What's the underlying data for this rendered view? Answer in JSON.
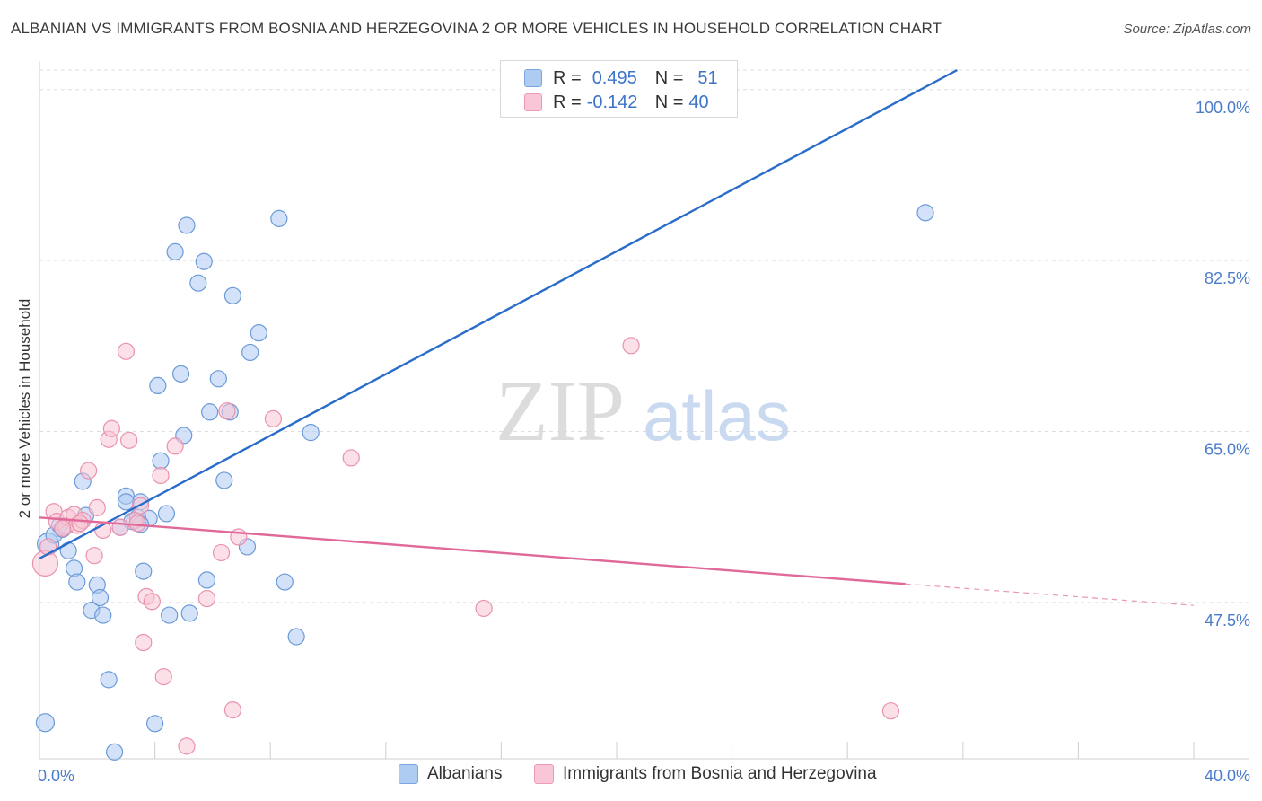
{
  "title": "ALBANIAN VS IMMIGRANTS FROM BOSNIA AND HERZEGOVINA 2 OR MORE VEHICLES IN HOUSEHOLD CORRELATION CHART",
  "source": "Source: ZipAtlas.com",
  "watermark": {
    "zip": "ZIP",
    "atlas": "atlas"
  },
  "legend": {
    "r_label": "R =",
    "n_label": "N =",
    "series": [
      {
        "r": "0.495",
        "n": "51",
        "color": "#aecbf2",
        "border": "#7aa6e0"
      },
      {
        "r": "-0.142",
        "n": "40",
        "color": "#f8c6d6",
        "border": "#ee9ab6"
      }
    ]
  },
  "bottom_legend": [
    "Albanians",
    "Immigrants from Bosnia and Herzegovina"
  ],
  "chart_data": {
    "type": "scatter",
    "title": "ALBANIAN VS IMMIGRANTS FROM BOSNIA AND HERZEGOVINA 2 OR MORE VEHICLES IN HOUSEHOLD CORRELATION CHART",
    "xlabel": "",
    "ylabel": "2 or more Vehicles in Household",
    "xlim": [
      0,
      40
    ],
    "ylim": [
      31.5,
      102
    ],
    "x_tick_labels": [
      {
        "value": 0,
        "label": "0.0%"
      },
      {
        "value": 40,
        "label": "40.0%"
      }
    ],
    "y_ticks": [
      {
        "value": 47.5,
        "label": "47.5%"
      },
      {
        "value": 65.0,
        "label": "65.0%"
      },
      {
        "value": 82.5,
        "label": "82.5%"
      },
      {
        "value": 100.0,
        "label": "100.0%"
      }
    ],
    "x_minor_ticks": [
      0,
      4,
      8,
      12,
      16,
      20,
      24,
      28,
      32,
      36,
      40
    ],
    "series": [
      {
        "name": "Albanians",
        "color": "#aecbf2",
        "stroke": "#6b9ad8",
        "trend": {
          "x0": 0,
          "y0": 52.0,
          "x1": 31.8,
          "y1": 102.0,
          "color": "#2a6cc9"
        },
        "points": [
          [
            0.3,
            53.5
          ],
          [
            0.5,
            54.4
          ],
          [
            0.7,
            55.4
          ],
          [
            0.8,
            55.0
          ],
          [
            1.0,
            52.8
          ],
          [
            1.2,
            51.0
          ],
          [
            1.3,
            49.6
          ],
          [
            1.5,
            59.9
          ],
          [
            1.6,
            56.4
          ],
          [
            1.8,
            46.7
          ],
          [
            2.0,
            49.3
          ],
          [
            2.1,
            48.0
          ],
          [
            2.2,
            46.2
          ],
          [
            2.4,
            39.6
          ],
          [
            2.6,
            32.2
          ],
          [
            2.8,
            55.2
          ],
          [
            3.0,
            58.4
          ],
          [
            3.2,
            55.8
          ],
          [
            3.5,
            57.8
          ],
          [
            3.6,
            50.7
          ],
          [
            3.8,
            56.1
          ],
          [
            4.0,
            35.1
          ],
          [
            4.1,
            69.7
          ],
          [
            4.2,
            62.0
          ],
          [
            4.4,
            56.6
          ],
          [
            4.5,
            46.2
          ],
          [
            4.7,
            83.4
          ],
          [
            4.9,
            70.9
          ],
          [
            5.0,
            64.6
          ],
          [
            5.1,
            86.1
          ],
          [
            5.2,
            46.4
          ],
          [
            5.5,
            80.2
          ],
          [
            5.7,
            82.4
          ],
          [
            5.8,
            49.8
          ],
          [
            5.9,
            67.0
          ],
          [
            6.2,
            70.4
          ],
          [
            6.4,
            60.0
          ],
          [
            6.6,
            67.0
          ],
          [
            6.7,
            78.9
          ],
          [
            7.2,
            53.2
          ],
          [
            7.3,
            73.1
          ],
          [
            7.6,
            75.1
          ],
          [
            8.3,
            86.8
          ],
          [
            8.5,
            49.6
          ],
          [
            8.9,
            44.0
          ],
          [
            9.4,
            64.9
          ],
          [
            30.7,
            87.4
          ],
          [
            0.2,
            35.2
          ],
          [
            3.0,
            57.8
          ],
          [
            3.4,
            56.2
          ],
          [
            3.5,
            55.5
          ]
        ]
      },
      {
        "name": "Immigrants from Bosnia and Herzegovina",
        "color": "#f8c6d6",
        "stroke": "#ea91ae",
        "trend": {
          "x0": 0,
          "y0": 56.2,
          "x1": 30.0,
          "y1": 49.4,
          "dash_to_x": 40,
          "dash_to_y": 47.2,
          "color": "#e0699a"
        },
        "points": [
          [
            0.2,
            51.5
          ],
          [
            0.3,
            53.2
          ],
          [
            0.5,
            56.8
          ],
          [
            0.6,
            55.8
          ],
          [
            0.9,
            55.3
          ],
          [
            1.0,
            56.2
          ],
          [
            1.2,
            56.5
          ],
          [
            1.3,
            55.4
          ],
          [
            1.5,
            55.9
          ],
          [
            1.7,
            61.0
          ],
          [
            1.9,
            52.3
          ],
          [
            2.0,
            57.2
          ],
          [
            2.2,
            54.9
          ],
          [
            2.4,
            64.2
          ],
          [
            2.5,
            65.3
          ],
          [
            3.0,
            73.2
          ],
          [
            3.1,
            64.1
          ],
          [
            3.3,
            55.9
          ],
          [
            3.5,
            57.4
          ],
          [
            3.6,
            43.4
          ],
          [
            3.7,
            48.1
          ],
          [
            3.9,
            47.6
          ],
          [
            4.2,
            60.5
          ],
          [
            4.3,
            39.9
          ],
          [
            4.7,
            63.5
          ],
          [
            5.1,
            32.8
          ],
          [
            5.8,
            47.9
          ],
          [
            6.3,
            52.6
          ],
          [
            6.5,
            67.1
          ],
          [
            6.7,
            36.5
          ],
          [
            6.9,
            54.2
          ],
          [
            8.1,
            66.3
          ],
          [
            10.8,
            62.3
          ],
          [
            15.4,
            46.9
          ],
          [
            20.5,
            73.8
          ],
          [
            29.5,
            36.4
          ],
          [
            3.4,
            55.6
          ],
          [
            0.8,
            55.1
          ],
          [
            1.4,
            55.6
          ],
          [
            2.8,
            55.2
          ]
        ]
      }
    ]
  }
}
